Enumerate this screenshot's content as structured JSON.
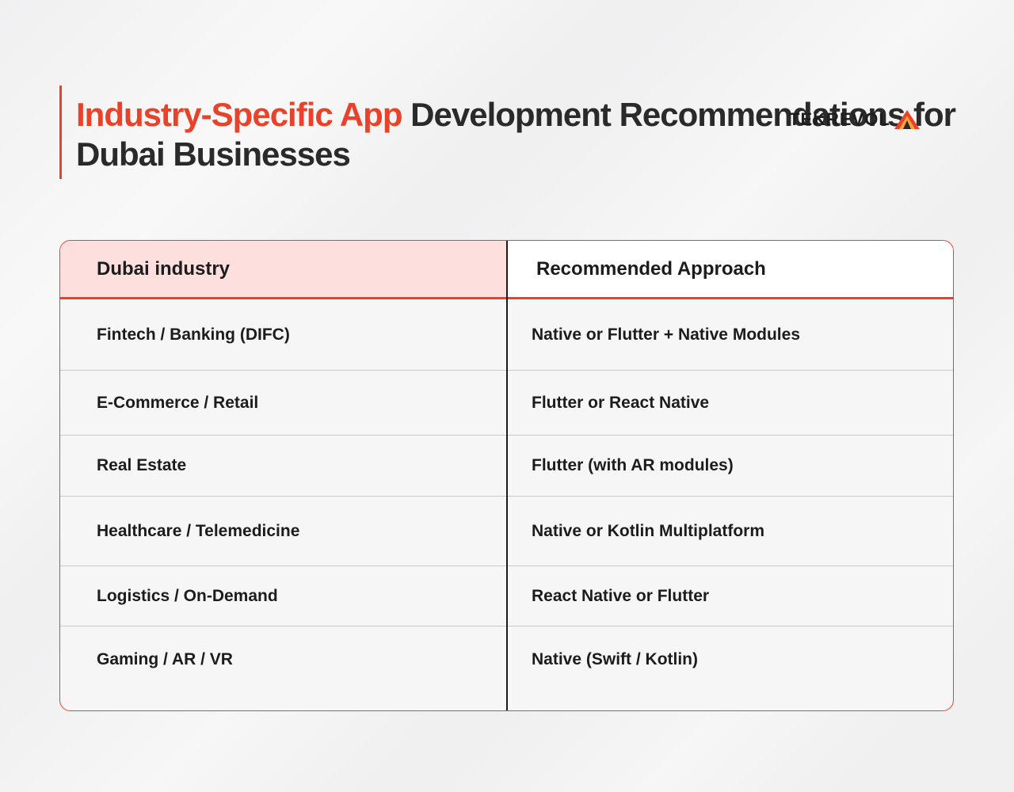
{
  "header": {
    "title_accent": "Industry-Specific App",
    "title_rest": " Development Recommendations for Dubai Businesses",
    "logo_text": "TEKREVOL"
  },
  "table": {
    "columns": [
      "Dubai industry",
      "Recommended Approach"
    ],
    "rows": [
      {
        "industry": "Fintech / Banking (DIFC)",
        "approach": "Native or Flutter + Native Modules"
      },
      {
        "industry": "E-Commerce / Retail",
        "approach": "Flutter or React Native"
      },
      {
        "industry": "Real Estate",
        "approach": "Flutter (with AR modules)"
      },
      {
        "industry": "Healthcare / Telemedicine",
        "approach": "Native or Kotlin Multiplatform"
      },
      {
        "industry": "Logistics / On-Demand",
        "approach": "React Native or Flutter"
      },
      {
        "industry": "Gaming / AR / VR",
        "approach": "Native (Swift / Kotlin)"
      }
    ]
  },
  "colors": {
    "accent": "#e8432a",
    "header_fill": "#fde0dd",
    "text": "#1c1c1c"
  },
  "icons": {
    "logo_mark": "triangle-logo-icon"
  }
}
